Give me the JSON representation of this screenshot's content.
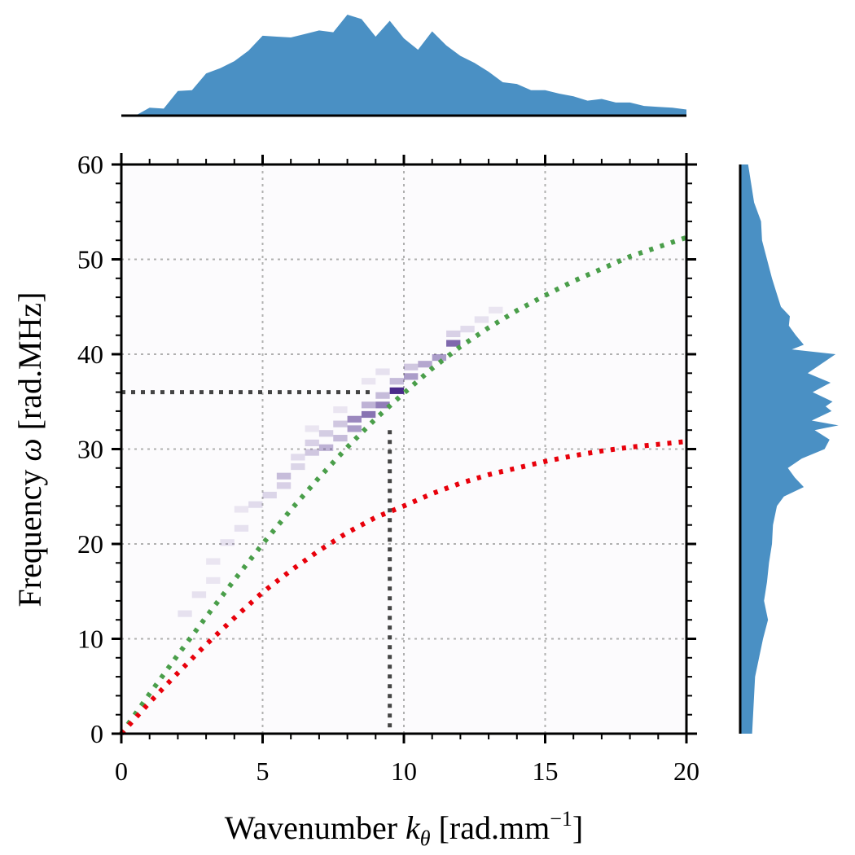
{
  "chart_data": {
    "type": "heatmap",
    "xlabel": {
      "prefix": "Wavenumber ",
      "symbol": "k",
      "subscript": "θ",
      "unit_open": " [rad.mm",
      "superscript": "−1",
      "unit_close": "]"
    },
    "ylabel": {
      "prefix": "Frequency ",
      "symbol": "ω",
      "unit": " [rad.MHz]"
    },
    "xlim": [
      0,
      20
    ],
    "ylim": [
      0,
      60
    ],
    "x_ticks": [
      "0",
      "5",
      "10",
      "15",
      "20"
    ],
    "y_ticks": [
      "0",
      "10",
      "20",
      "30",
      "40",
      "50",
      "60"
    ],
    "grid": true,
    "colors": {
      "heatmap": "#4a2a8a",
      "marginal": "#4a90c4",
      "green_curve": "#4a9e4a",
      "red_curve": "#e8000b",
      "guide": "#444444"
    },
    "series": [
      {
        "style": "green-dotted",
        "x": [
          0,
          1,
          2,
          3,
          4,
          5,
          6,
          7,
          8,
          9,
          10,
          11,
          12,
          13,
          14,
          15,
          16,
          17,
          18,
          19,
          20
        ],
        "y": [
          0,
          4.2,
          8.3,
          12.3,
          16.2,
          20.0,
          23.6,
          27.0,
          30.2,
          33.2,
          35.9,
          38.5,
          40.8,
          42.8,
          44.6,
          46.2,
          47.7,
          49.0,
          50.3,
          51.3,
          52.3
        ]
      },
      {
        "style": "red-dotted",
        "x": [
          0,
          1,
          2,
          3,
          4,
          5,
          6,
          7,
          8,
          9,
          10,
          11,
          12,
          13,
          14,
          15,
          16,
          17,
          18,
          19,
          20
        ],
        "y": [
          0,
          3.3,
          6.4,
          9.4,
          12.2,
          14.9,
          17.2,
          19.3,
          21.2,
          22.8,
          24.0,
          25.3,
          26.4,
          27.3,
          28.0,
          28.7,
          29.3,
          29.8,
          30.2,
          30.5,
          30.8
        ]
      }
    ],
    "guide_lines": {
      "k": 9.5,
      "omega": 36
    },
    "heatmap_cells": [
      {
        "k": 2.25,
        "w": 12.5,
        "v": 0.12
      },
      {
        "k": 2.75,
        "w": 14.5,
        "v": 0.12
      },
      {
        "k": 3.25,
        "w": 16.0,
        "v": 0.1
      },
      {
        "k": 3.25,
        "w": 18.0,
        "v": 0.1
      },
      {
        "k": 3.75,
        "w": 20.0,
        "v": 0.12
      },
      {
        "k": 4.25,
        "w": 21.5,
        "v": 0.12
      },
      {
        "k": 4.25,
        "w": 23.5,
        "v": 0.1
      },
      {
        "k": 4.75,
        "w": 24.0,
        "v": 0.15
      },
      {
        "k": 5.25,
        "w": 25.0,
        "v": 0.18
      },
      {
        "k": 5.75,
        "w": 27.0,
        "v": 0.3
      },
      {
        "k": 5.75,
        "w": 26.0,
        "v": 0.2
      },
      {
        "k": 6.25,
        "w": 28.0,
        "v": 0.18
      },
      {
        "k": 6.25,
        "w": 29.0,
        "v": 0.15
      },
      {
        "k": 6.75,
        "w": 29.5,
        "v": 0.25
      },
      {
        "k": 6.75,
        "w": 30.5,
        "v": 0.2
      },
      {
        "k": 7.25,
        "w": 30.0,
        "v": 0.35
      },
      {
        "k": 7.25,
        "w": 31.5,
        "v": 0.22
      },
      {
        "k": 7.75,
        "w": 31.0,
        "v": 0.3
      },
      {
        "k": 7.75,
        "w": 32.5,
        "v": 0.25
      },
      {
        "k": 8.25,
        "w": 32.0,
        "v": 0.45
      },
      {
        "k": 8.25,
        "w": 33.0,
        "v": 0.55
      },
      {
        "k": 8.75,
        "w": 33.5,
        "v": 0.65
      },
      {
        "k": 8.75,
        "w": 34.5,
        "v": 0.35
      },
      {
        "k": 9.25,
        "w": 34.5,
        "v": 0.6
      },
      {
        "k": 9.25,
        "w": 35.5,
        "v": 0.3
      },
      {
        "k": 9.75,
        "w": 36.0,
        "v": 1.0
      },
      {
        "k": 9.75,
        "w": 37.0,
        "v": 0.3
      },
      {
        "k": 10.25,
        "w": 37.5,
        "v": 0.45
      },
      {
        "k": 10.25,
        "w": 38.5,
        "v": 0.25
      },
      {
        "k": 10.75,
        "w": 38.8,
        "v": 0.4
      },
      {
        "k": 11.25,
        "w": 39.5,
        "v": 0.45
      },
      {
        "k": 11.75,
        "w": 41.0,
        "v": 0.7
      },
      {
        "k": 11.75,
        "w": 42.0,
        "v": 0.2
      },
      {
        "k": 12.25,
        "w": 42.5,
        "v": 0.15
      },
      {
        "k": 12.75,
        "w": 43.5,
        "v": 0.12
      },
      {
        "k": 13.25,
        "w": 44.5,
        "v": 0.1
      },
      {
        "k": 9.25,
        "w": 38.0,
        "v": 0.12
      },
      {
        "k": 8.75,
        "w": 37.0,
        "v": 0.1
      },
      {
        "k": 7.75,
        "w": 34.0,
        "v": 0.1
      },
      {
        "k": 6.75,
        "w": 32.0,
        "v": 0.1
      }
    ],
    "marginal_x": {
      "k": [
        0.5,
        1,
        1.5,
        2,
        2.5,
        3,
        3.5,
        4,
        4.5,
        5,
        5.5,
        6,
        6.5,
        7,
        7.5,
        8,
        8.5,
        9,
        9.5,
        10,
        10.5,
        11,
        11.5,
        12,
        12.5,
        13,
        13.5,
        14,
        14.5,
        15,
        15.5,
        16,
        16.5,
        17,
        17.5,
        18,
        18.5,
        19,
        19.5,
        20
      ],
      "density": [
        0.0,
        0.09,
        0.08,
        0.28,
        0.29,
        0.48,
        0.54,
        0.62,
        0.74,
        0.91,
        0.9,
        0.89,
        0.93,
        0.97,
        0.95,
        1.15,
        1.1,
        0.9,
        1.08,
        0.88,
        0.75,
        0.96,
        0.8,
        0.68,
        0.6,
        0.5,
        0.38,
        0.36,
        0.29,
        0.29,
        0.25,
        0.22,
        0.17,
        0.19,
        0.15,
        0.15,
        0.11,
        0.1,
        0.09,
        0.07
      ]
    },
    "marginal_y": {
      "w": [
        0,
        2,
        4,
        6,
        8,
        10,
        12,
        14,
        16,
        18,
        20,
        22,
        24,
        25,
        26,
        27,
        28,
        29,
        30,
        31,
        32,
        32.5,
        33,
        34,
        34.5,
        35,
        36,
        37,
        38,
        39,
        40,
        40.5,
        41,
        42,
        43,
        44,
        45,
        46,
        47,
        48,
        50,
        52,
        54,
        56,
        58,
        60
      ],
      "density": [
        0.12,
        0.13,
        0.14,
        0.15,
        0.19,
        0.23,
        0.28,
        0.24,
        0.27,
        0.29,
        0.32,
        0.33,
        0.37,
        0.44,
        0.64,
        0.55,
        0.48,
        0.62,
        0.85,
        0.9,
        0.75,
        0.99,
        0.72,
        0.92,
        0.86,
        0.93,
        0.73,
        0.91,
        0.68,
        0.82,
        0.96,
        0.52,
        0.64,
        0.56,
        0.49,
        0.5,
        0.41,
        0.38,
        0.35,
        0.32,
        0.27,
        0.22,
        0.21,
        0.14,
        0.11,
        0.08
      ]
    }
  }
}
